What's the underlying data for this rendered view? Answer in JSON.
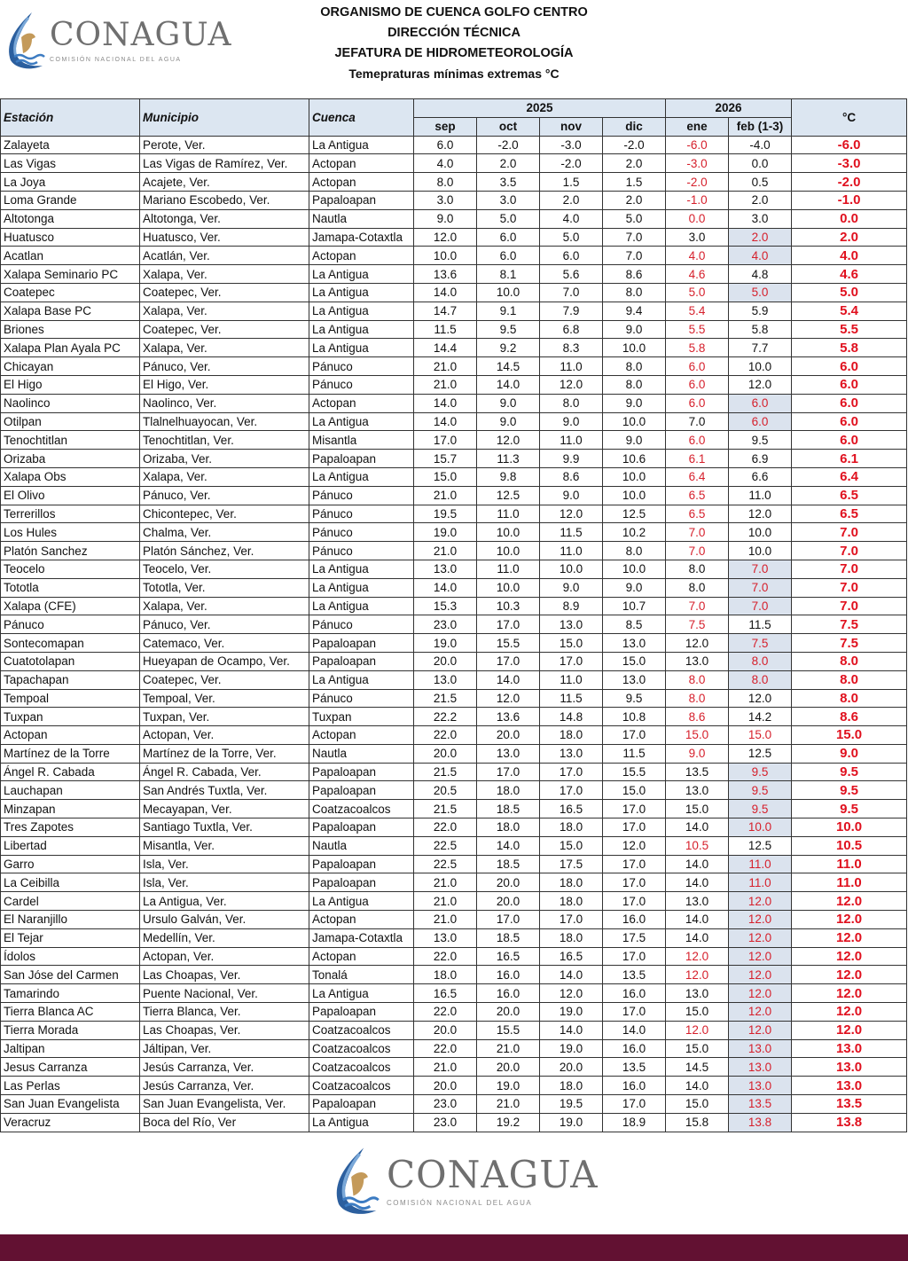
{
  "header": {
    "logo_text": "CONAGUA",
    "logo_subtext": "COMISIÓN NACIONAL DEL AGUA",
    "line1": "ORGANISMO DE CUENCA GOLFO CENTRO",
    "line2": "DIRECCIÓN TÉCNICA",
    "line3": "JEFATURA DE HIDROMETEOROLOGÍA",
    "subtitle": "Temepraturas mínimas extremas °C"
  },
  "colors": {
    "highlight_red": "#d6202c",
    "header_bg": "#dce6f1",
    "shade": "#dbe3ee",
    "footer_bar": "#621132"
  },
  "table": {
    "headers": {
      "estacion": "Estación",
      "municipio": "Municipio",
      "cuenca": "Cuenca",
      "year1": "2025",
      "year2": "2026",
      "unit": "°C"
    },
    "months": [
      "sep",
      "oct",
      "nov",
      "dic",
      "ene",
      "feb (1-3)"
    ],
    "rows": [
      [
        "Zalayeta",
        "Perote, Ver.",
        "La Antigua",
        "6.0",
        "-2.0",
        "-3.0",
        "-2.0",
        "-6.0",
        "-4.0",
        "-6.0",
        false
      ],
      [
        "Las Vigas",
        "Las Vigas de Ramírez, Ver.",
        "Actopan",
        "4.0",
        "2.0",
        "-2.0",
        "2.0",
        "-3.0",
        "0.0",
        "-3.0",
        false
      ],
      [
        "La Joya",
        "Acajete, Ver.",
        "Actopan",
        "8.0",
        "3.5",
        "1.5",
        "1.5",
        "-2.0",
        "0.5",
        "-2.0",
        false
      ],
      [
        "Loma Grande",
        "Mariano Escobedo, Ver.",
        "Papaloapan",
        "3.0",
        "3.0",
        "2.0",
        "2.0",
        "-1.0",
        "2.0",
        "-1.0",
        false
      ],
      [
        "Altotonga",
        "Altotonga, Ver.",
        "Nautla",
        "9.0",
        "5.0",
        "4.0",
        "5.0",
        "0.0",
        "3.0",
        "0.0",
        false
      ],
      [
        "Huatusco",
        "Huatusco, Ver.",
        "Jamapa-Cotaxtla",
        "12.0",
        "6.0",
        "5.0",
        "7.0",
        "3.0",
        "2.0",
        "2.0",
        true
      ],
      [
        "Acatlan",
        "Acatlán, Ver.",
        "Actopan",
        "10.0",
        "6.0",
        "6.0",
        "7.0",
        "4.0",
        "4.0",
        "4.0",
        true
      ],
      [
        "Xalapa Seminario PC",
        "Xalapa, Ver.",
        "La Antigua",
        "13.6",
        "8.1",
        "5.6",
        "8.6",
        "4.6",
        "4.8",
        "4.6",
        false
      ],
      [
        "Coatepec",
        "Coatepec, Ver.",
        "La Antigua",
        "14.0",
        "10.0",
        "7.0",
        "8.0",
        "5.0",
        "5.0",
        "5.0",
        true
      ],
      [
        "Xalapa Base PC",
        "Xalapa, Ver.",
        "La Antigua",
        "14.7",
        "9.1",
        "7.9",
        "9.4",
        "5.4",
        "5.9",
        "5.4",
        false
      ],
      [
        "Briones",
        "Coatepec, Ver.",
        "La Antigua",
        "11.5",
        "9.5",
        "6.8",
        "9.0",
        "5.5",
        "5.8",
        "5.5",
        false
      ],
      [
        "Xalapa Plan Ayala PC",
        "Xalapa, Ver.",
        "La Antigua",
        "14.4",
        "9.2",
        "8.3",
        "10.0",
        "5.8",
        "7.7",
        "5.8",
        false
      ],
      [
        "Chicayan",
        "Pánuco, Ver.",
        "Pánuco",
        "21.0",
        "14.5",
        "11.0",
        "8.0",
        "6.0",
        "10.0",
        "6.0",
        false
      ],
      [
        "El Higo",
        "El Higo, Ver.",
        "Pánuco",
        "21.0",
        "14.0",
        "12.0",
        "8.0",
        "6.0",
        "12.0",
        "6.0",
        false
      ],
      [
        "Naolinco",
        "Naolinco, Ver.",
        "Actopan",
        "14.0",
        "9.0",
        "8.0",
        "9.0",
        "6.0",
        "6.0",
        "6.0",
        true
      ],
      [
        "Otilpan",
        "Tlalnelhuayocan, Ver.",
        "La Antigua",
        "14.0",
        "9.0",
        "9.0",
        "10.0",
        "7.0",
        "6.0",
        "6.0",
        true
      ],
      [
        "Tenochtitlan",
        "Tenochtitlan, Ver.",
        "Misantla",
        "17.0",
        "12.0",
        "11.0",
        "9.0",
        "6.0",
        "9.5",
        "6.0",
        false
      ],
      [
        "Orizaba",
        "Orizaba, Ver.",
        "Papaloapan",
        "15.7",
        "11.3",
        "9.9",
        "10.6",
        "6.1",
        "6.9",
        "6.1",
        false
      ],
      [
        "Xalapa Obs",
        "Xalapa, Ver.",
        "La Antigua",
        "15.0",
        "9.8",
        "8.6",
        "10.0",
        "6.4",
        "6.6",
        "6.4",
        false
      ],
      [
        "El Olivo",
        "Pánuco, Ver.",
        "Pánuco",
        "21.0",
        "12.5",
        "9.0",
        "10.0",
        "6.5",
        "11.0",
        "6.5",
        false
      ],
      [
        "Terrerillos",
        "Chicontepec, Ver.",
        "Pánuco",
        "19.5",
        "11.0",
        "12.0",
        "12.5",
        "6.5",
        "12.0",
        "6.5",
        false
      ],
      [
        "Los Hules",
        "Chalma, Ver.",
        "Pánuco",
        "19.0",
        "10.0",
        "11.5",
        "10.2",
        "7.0",
        "10.0",
        "7.0",
        false
      ],
      [
        "Platón Sanchez",
        "Platón Sánchez, Ver.",
        "Pánuco",
        "21.0",
        "10.0",
        "11.0",
        "8.0",
        "7.0",
        "10.0",
        "7.0",
        false
      ],
      [
        "Teocelo",
        "Teocelo, Ver.",
        "La Antigua",
        "13.0",
        "11.0",
        "10.0",
        "10.0",
        "8.0",
        "7.0",
        "7.0",
        true
      ],
      [
        "Tototla",
        "Tototla, Ver.",
        "La Antigua",
        "14.0",
        "10.0",
        "9.0",
        "9.0",
        "8.0",
        "7.0",
        "7.0",
        true
      ],
      [
        "Xalapa (CFE)",
        "Xalapa, Ver.",
        "La Antigua",
        "15.3",
        "10.3",
        "8.9",
        "10.7",
        "7.0",
        "7.0",
        "7.0",
        true
      ],
      [
        "Pánuco",
        "Pánuco, Ver.",
        "Pánuco",
        "23.0",
        "17.0",
        "13.0",
        "8.5",
        "7.5",
        "11.5",
        "7.5",
        false
      ],
      [
        "Sontecomapan",
        "Catemaco, Ver.",
        "Papaloapan",
        "19.0",
        "15.5",
        "15.0",
        "13.0",
        "12.0",
        "7.5",
        "7.5",
        true
      ],
      [
        "Cuatotolapan",
        "Hueyapan de Ocampo, Ver.",
        "Papaloapan",
        "20.0",
        "17.0",
        "17.0",
        "15.0",
        "13.0",
        "8.0",
        "8.0",
        true
      ],
      [
        "Tapachapan",
        "Coatepec, Ver.",
        "La Antigua",
        "13.0",
        "14.0",
        "11.0",
        "13.0",
        "8.0",
        "8.0",
        "8.0",
        true
      ],
      [
        "Tempoal",
        "Tempoal, Ver.",
        "Pánuco",
        "21.5",
        "12.0",
        "11.5",
        "9.5",
        "8.0",
        "12.0",
        "8.0",
        false
      ],
      [
        "Tuxpan",
        "Tuxpan, Ver.",
        "Tuxpan",
        "22.2",
        "13.6",
        "14.8",
        "10.8",
        "8.6",
        "14.2",
        "8.6",
        false
      ],
      [
        "Actopan",
        "Actopan, Ver.",
        "Actopan",
        "22.0",
        "20.0",
        "18.0",
        "17.0",
        "15.0",
        "15.0",
        "15.0",
        false
      ],
      [
        "Martínez de la Torre",
        "Martínez de la Torre, Ver.",
        "Nautla",
        "20.0",
        "13.0",
        "13.0",
        "11.5",
        "9.0",
        "12.5",
        "9.0",
        false
      ],
      [
        "Ángel R. Cabada",
        "Ángel R. Cabada, Ver.",
        "Papaloapan",
        "21.5",
        "17.0",
        "17.0",
        "15.5",
        "13.5",
        "9.5",
        "9.5",
        true
      ],
      [
        "Lauchapan",
        "San Andrés Tuxtla, Ver.",
        "Papaloapan",
        "20.5",
        "18.0",
        "17.0",
        "15.0",
        "13.0",
        "9.5",
        "9.5",
        true
      ],
      [
        "Minzapan",
        "Mecayapan, Ver.",
        "Coatzacoalcos",
        "21.5",
        "18.5",
        "16.5",
        "17.0",
        "15.0",
        "9.5",
        "9.5",
        true
      ],
      [
        "Tres Zapotes",
        "Santiago Tuxtla, Ver.",
        "Papaloapan",
        "22.0",
        "18.0",
        "18.0",
        "17.0",
        "14.0",
        "10.0",
        "10.0",
        true
      ],
      [
        "Libertad",
        "Misantla, Ver.",
        "Nautla",
        "22.5",
        "14.0",
        "15.0",
        "12.0",
        "10.5",
        "12.5",
        "10.5",
        false
      ],
      [
        "Garro",
        "Isla, Ver.",
        "Papaloapan",
        "22.5",
        "18.5",
        "17.5",
        "17.0",
        "14.0",
        "11.0",
        "11.0",
        true
      ],
      [
        "La Ceibilla",
        "Isla, Ver.",
        "Papaloapan",
        "21.0",
        "20.0",
        "18.0",
        "17.0",
        "14.0",
        "11.0",
        "11.0",
        true
      ],
      [
        "Cardel",
        "La Antigua, Ver.",
        "La Antigua",
        "21.0",
        "20.0",
        "18.0",
        "17.0",
        "13.0",
        "12.0",
        "12.0",
        true
      ],
      [
        "El Naranjillo",
        "Ursulo Galván, Ver.",
        "Actopan",
        "21.0",
        "17.0",
        "17.0",
        "16.0",
        "14.0",
        "12.0",
        "12.0",
        true
      ],
      [
        "El Tejar",
        "Medellín, Ver.",
        "Jamapa-Cotaxtla",
        "13.0",
        "18.5",
        "18.0",
        "17.5",
        "14.0",
        "12.0",
        "12.0",
        true
      ],
      [
        "Ídolos",
        "Actopan, Ver.",
        "Actopan",
        "22.0",
        "16.5",
        "16.5",
        "17.0",
        "12.0",
        "12.0",
        "12.0",
        true
      ],
      [
        "San Jóse del Carmen",
        "Las Choapas, Ver.",
        "Tonalá",
        "18.0",
        "16.0",
        "14.0",
        "13.5",
        "12.0",
        "12.0",
        "12.0",
        true
      ],
      [
        "Tamarindo",
        "Puente Nacional, Ver.",
        "La Antigua",
        "16.5",
        "16.0",
        "12.0",
        "16.0",
        "13.0",
        "12.0",
        "12.0",
        true
      ],
      [
        "Tierra Blanca AC",
        "Tierra Blanca, Ver.",
        "Papaloapan",
        "22.0",
        "20.0",
        "19.0",
        "17.0",
        "15.0",
        "12.0",
        "12.0",
        true
      ],
      [
        "Tierra Morada",
        "Las Choapas, Ver.",
        "Coatzacoalcos",
        "20.0",
        "15.5",
        "14.0",
        "14.0",
        "12.0",
        "12.0",
        "12.0",
        true
      ],
      [
        "Jaltipan",
        "Jáltipan, Ver.",
        "Coatzacoalcos",
        "22.0",
        "21.0",
        "19.0",
        "16.0",
        "15.0",
        "13.0",
        "13.0",
        true
      ],
      [
        "Jesus Carranza",
        "Jesús Carranza, Ver.",
        "Coatzacoalcos",
        "21.0",
        "20.0",
        "20.0",
        "13.5",
        "14.5",
        "13.0",
        "13.0",
        true
      ],
      [
        "Las Perlas",
        "Jesús Carranza, Ver.",
        "Coatzacoalcos",
        "20.0",
        "19.0",
        "18.0",
        "16.0",
        "14.0",
        "13.0",
        "13.0",
        true
      ],
      [
        "San Juan Evangelista",
        "San Juan Evangelista, Ver.",
        "Papaloapan",
        "23.0",
        "21.0",
        "19.5",
        "17.0",
        "15.0",
        "13.5",
        "13.5",
        true
      ],
      [
        "Veracruz",
        "Boca del Río, Ver",
        "La Antigua",
        "23.0",
        "19.2",
        "19.0",
        "18.9",
        "15.8",
        "13.8",
        "13.8",
        true
      ]
    ]
  }
}
